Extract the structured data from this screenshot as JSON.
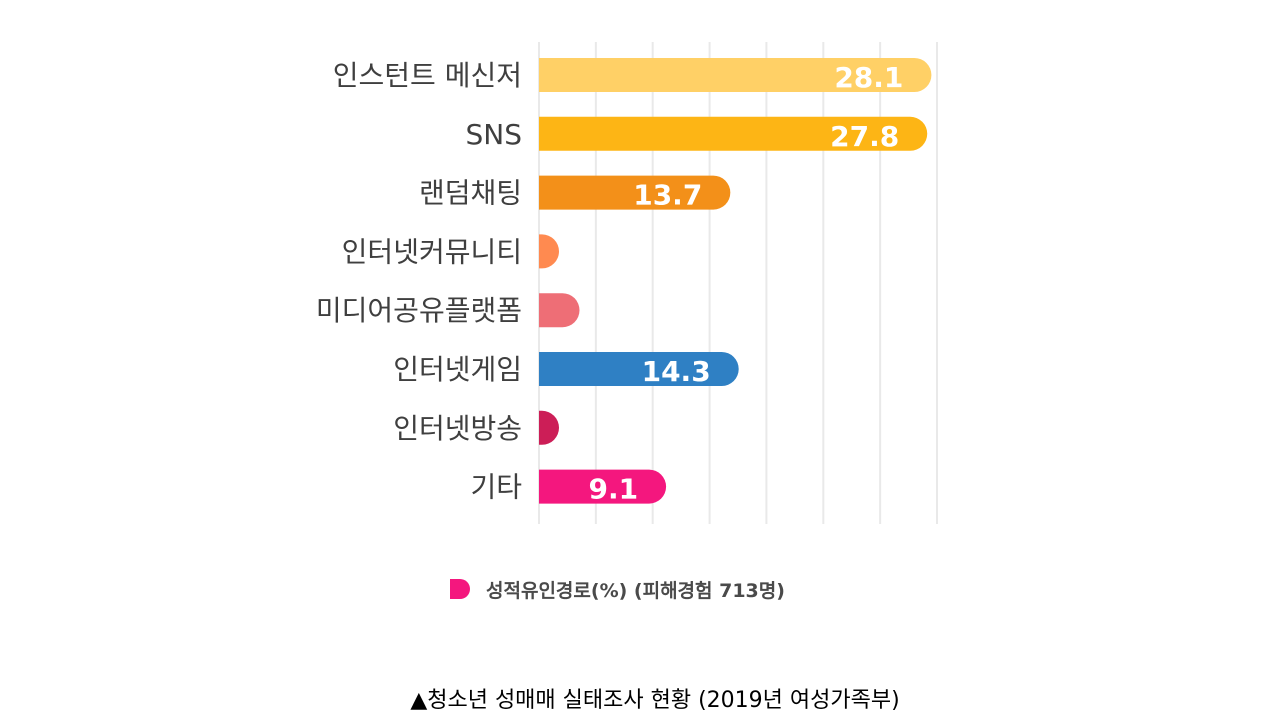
{
  "chart_data": {
    "type": "bar",
    "orientation": "horizontal",
    "categories": [
      "인스턴트 메신저",
      "SNS",
      "랜덤채팅",
      "인터넷커뮤니티",
      "미디어공유플랫폼",
      "인터넷게임",
      "인터넷방송",
      "기타"
    ],
    "values": [
      28.1,
      27.8,
      13.7,
      1.4,
      2.9,
      14.3,
      1.0,
      9.1
    ],
    "data_labels": [
      "28.1",
      "27.8",
      "13.7",
      "",
      "",
      "14.3",
      "",
      "9.1"
    ],
    "colors": [
      "#FFD066",
      "#FDB515",
      "#F39019",
      "#FF8A50",
      "#EE6E76",
      "#2F80C4",
      "#CC1E57",
      "#F4177E"
    ],
    "xlim": [
      0,
      28.5
    ],
    "grid": true,
    "legend": {
      "label": "성적유인경로(%) (피해경험 713명)",
      "color": "#F4177E",
      "position": "bottom"
    }
  },
  "caption": "▲청소년 성매매 실태조사 현황 (2019년 여성가족부)"
}
